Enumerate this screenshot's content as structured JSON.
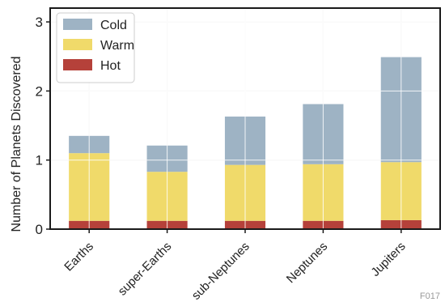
{
  "chart_data": {
    "type": "bar",
    "stacked": true,
    "categories": [
      "Earths",
      "super-Earths",
      "sub-Neptunes",
      "Neptunes",
      "Jupiters"
    ],
    "series": [
      {
        "name": "Hot",
        "values": [
          0.12,
          0.12,
          0.12,
          0.12,
          0.13
        ],
        "color": "#b5413a"
      },
      {
        "name": "Warm",
        "values": [
          0.98,
          0.71,
          0.81,
          0.82,
          0.84
        ],
        "color": "#f0da6a"
      },
      {
        "name": "Cold",
        "values": [
          0.25,
          0.38,
          0.7,
          0.87,
          1.52
        ],
        "color": "#9eb3c4"
      }
    ],
    "xlabel": "",
    "ylabel": "Number of Planets Discovered",
    "ylim": [
      0,
      3.2
    ],
    "yticks": [
      0,
      1,
      2,
      3
    ],
    "grid": true,
    "legend_position": "top-left"
  },
  "figure_id": "F017"
}
